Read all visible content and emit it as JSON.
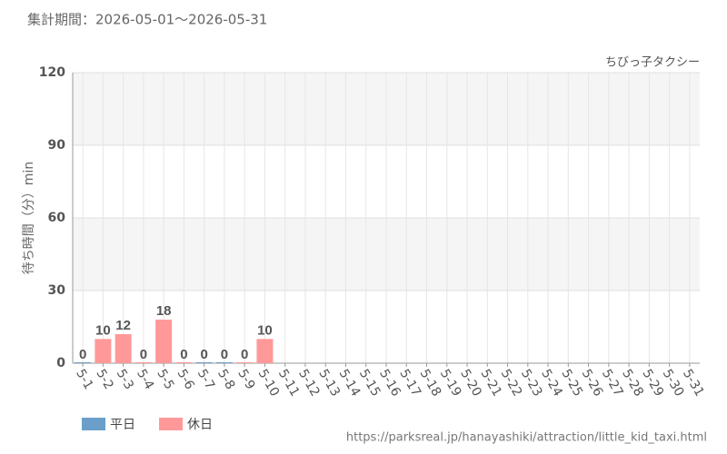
{
  "chart_data": {
    "type": "bar",
    "title": "集計期間：2026-05-01～2026-05-31",
    "subtitle": "ちびっ子タクシー",
    "y_label": "待ち時間（分）min",
    "source": "https://parksreal.jp/hanayashiki/attraction/little_kid_taxi.html",
    "categories": [
      "5-1",
      "5-2",
      "5-3",
      "5-4",
      "5-5",
      "5-6",
      "5-7",
      "5-8",
      "5-9",
      "5-10",
      "5-11",
      "5-12",
      "5-13",
      "5-14",
      "5-15",
      "5-16",
      "5-17",
      "5-18",
      "5-19",
      "5-20",
      "5-21",
      "5-22",
      "5-23",
      "5-24",
      "5-25",
      "5-26",
      "5-27",
      "5-28",
      "5-29",
      "5-30",
      "5-31"
    ],
    "category_colors": [
      "#333333",
      "#f08080",
      "#f08080",
      "#f08080",
      "#f08080",
      "#f08080",
      "#333333",
      "#333333",
      "#f08080",
      "#f08080",
      "#333333",
      "#333333",
      "#333333",
      "#333333",
      "#333333",
      "#f08080",
      "#f08080",
      "#333333",
      "#333333",
      "#333333",
      "#333333",
      "#333333",
      "#f08080",
      "#f08080",
      "#333333",
      "#333333",
      "#333333",
      "#333333",
      "#333333",
      "#f08080",
      "#f08080"
    ],
    "series": [
      {
        "name": "平日",
        "color": "#6b9ec8",
        "values": [
          0,
          null,
          null,
          null,
          null,
          null,
          0,
          0,
          null,
          null,
          null,
          null,
          null,
          null,
          null,
          null,
          null,
          null,
          null,
          null,
          null,
          null,
          null,
          null,
          null,
          null,
          null,
          null,
          null,
          null,
          null
        ]
      },
      {
        "name": "休日",
        "color": "#ff9999",
        "values": [
          null,
          10,
          12,
          0,
          18,
          0,
          null,
          null,
          0,
          10,
          null,
          null,
          null,
          null,
          null,
          null,
          null,
          null,
          null,
          null,
          null,
          null,
          null,
          null,
          null,
          null,
          null,
          null,
          null,
          null,
          null
        ]
      }
    ],
    "ylim": [
      0,
      120
    ],
    "yticks": [
      0,
      30,
      60,
      90,
      120
    ],
    "grid": true
  }
}
